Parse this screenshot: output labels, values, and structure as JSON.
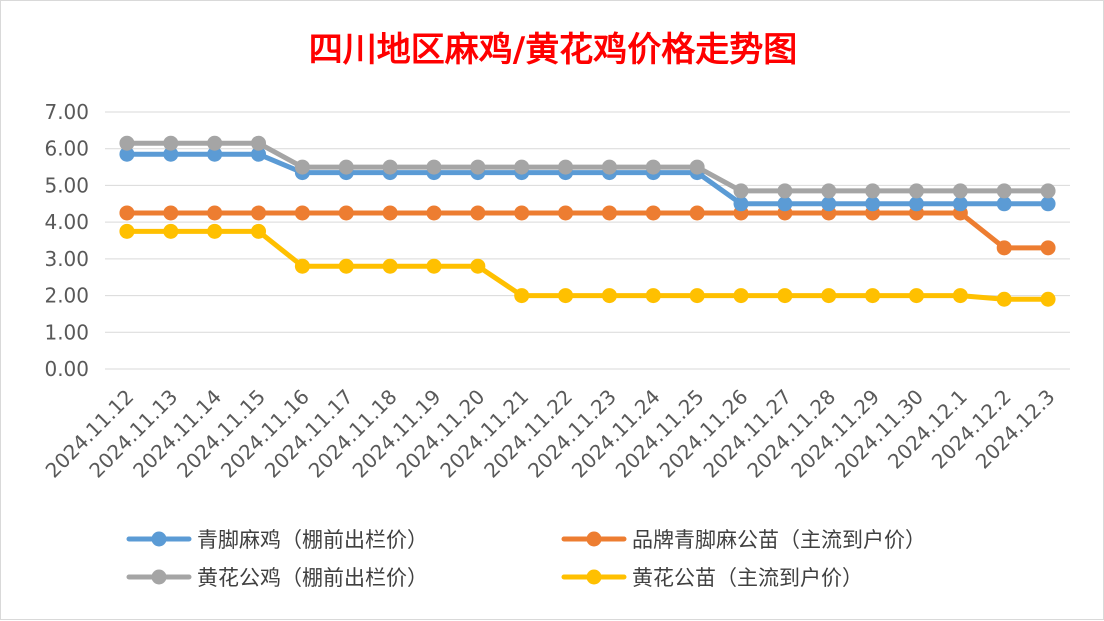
{
  "chart_data": {
    "type": "line",
    "title": "四川地区麻鸡/黄花鸡价格走势图",
    "xlabel": "",
    "ylabel": "",
    "ylim": [
      0,
      7
    ],
    "yticks": [
      "0.00",
      "1.00",
      "2.00",
      "3.00",
      "4.00",
      "5.00",
      "6.00",
      "7.00"
    ],
    "grid": true,
    "legend_position": "bottom",
    "categories": [
      "2024.11.12",
      "2024.11.13",
      "2024.11.14",
      "2024.11.15",
      "2024.11.16",
      "2024.11.17",
      "2024.11.18",
      "2024.11.19",
      "2024.11.20",
      "2024.11.21",
      "2024.11.22",
      "2024.11.23",
      "2024.11.24",
      "2024.11.25",
      "2024.11.26",
      "2024.11.27",
      "2024.11.28",
      "2024.11.29",
      "2024.11.30",
      "2024.12.1",
      "2024.12.2",
      "2024.12.3"
    ],
    "series": [
      {
        "name": "青脚麻鸡（棚前出栏价）",
        "color": "#5b9bd5",
        "values": [
          5.85,
          5.85,
          5.85,
          5.85,
          5.35,
          5.35,
          5.35,
          5.35,
          5.35,
          5.35,
          5.35,
          5.35,
          5.35,
          5.35,
          4.5,
          4.5,
          4.5,
          4.5,
          4.5,
          4.5,
          4.5,
          4.5
        ]
      },
      {
        "name": "品牌青脚麻公苗（主流到户价）",
        "color": "#ed7d31",
        "values": [
          4.25,
          4.25,
          4.25,
          4.25,
          4.25,
          4.25,
          4.25,
          4.25,
          4.25,
          4.25,
          4.25,
          4.25,
          4.25,
          4.25,
          4.25,
          4.25,
          4.25,
          4.25,
          4.25,
          4.25,
          3.3,
          3.3
        ]
      },
      {
        "name": "黄花公鸡（棚前出栏价）",
        "color": "#a5a5a5",
        "values": [
          6.15,
          6.15,
          6.15,
          6.15,
          5.5,
          5.5,
          5.5,
          5.5,
          5.5,
          5.5,
          5.5,
          5.5,
          5.5,
          5.5,
          4.85,
          4.85,
          4.85,
          4.85,
          4.85,
          4.85,
          4.85,
          4.85
        ]
      },
      {
        "name": "黄花公苗（主流到户价）",
        "color": "#ffc000",
        "values": [
          3.75,
          3.75,
          3.75,
          3.75,
          2.8,
          2.8,
          2.8,
          2.8,
          2.8,
          2.0,
          2.0,
          2.0,
          2.0,
          2.0,
          2.0,
          2.0,
          2.0,
          2.0,
          2.0,
          2.0,
          1.9,
          1.9
        ]
      }
    ]
  }
}
